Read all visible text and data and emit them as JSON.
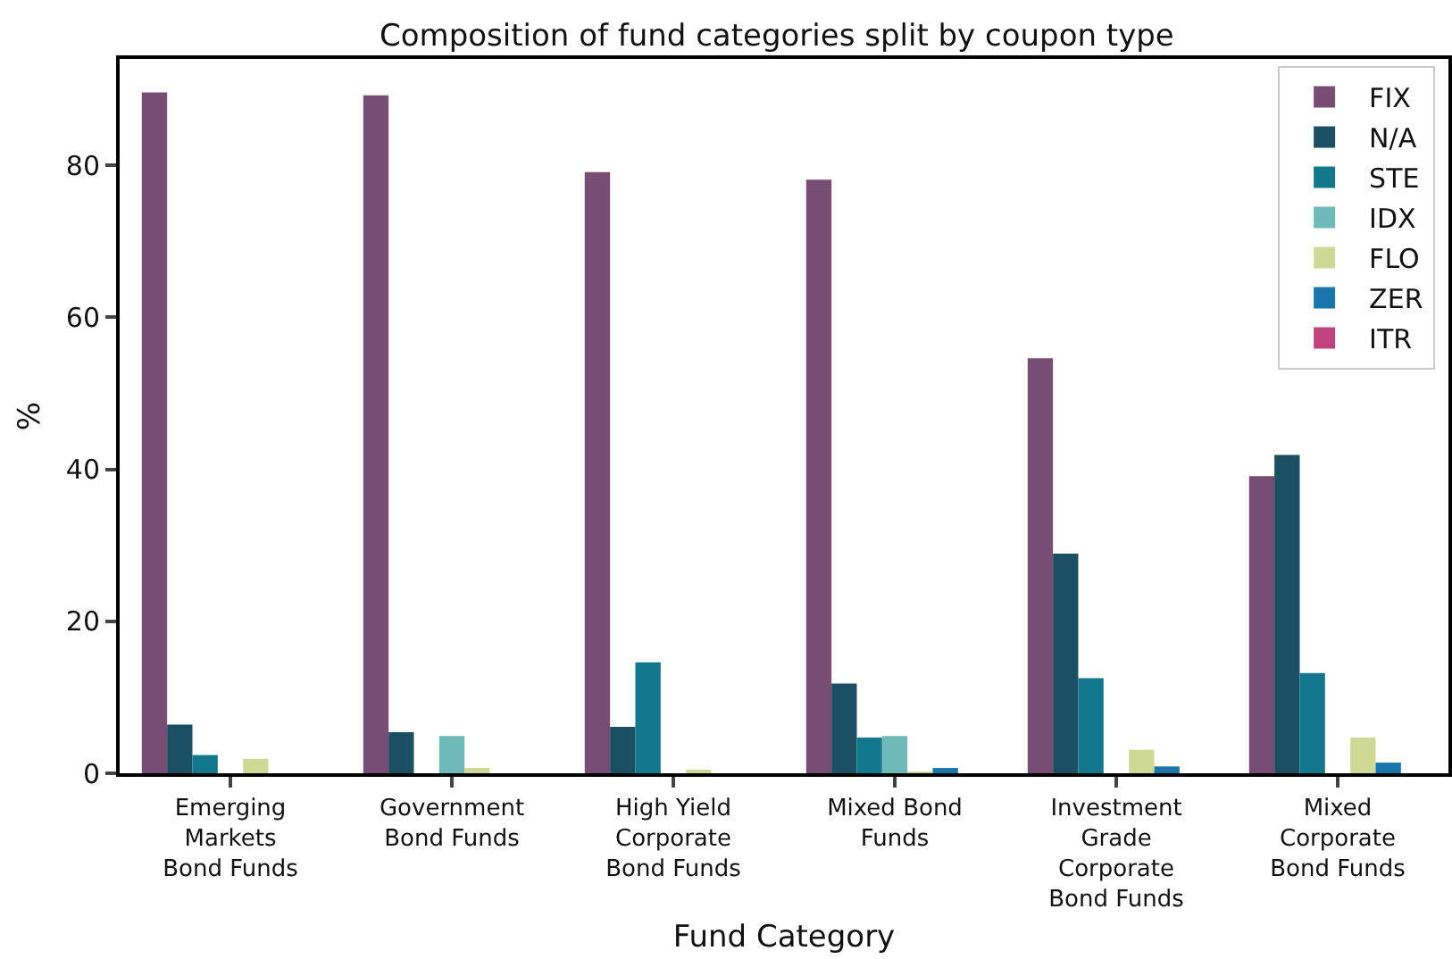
{
  "chart_data": {
    "type": "bar",
    "title": "Composition of fund categories split by coupon type",
    "xlabel": "Fund Category",
    "ylabel": "%",
    "categories": [
      "Emerging\nMarkets\nBond Funds",
      "Government\nBond Funds",
      "High Yield\nCorporate\nBond Funds",
      "Mixed Bond\nFunds",
      "Investment\nGrade\nCorporate\nBond Funds",
      "Mixed\nCorporate\nBond Funds"
    ],
    "series": [
      {
        "name": "FIX",
        "color": "#774d74",
        "values": [
          89.6,
          89.2,
          79.1,
          78.1,
          54.6,
          39.1
        ]
      },
      {
        "name": "N/A",
        "color": "#1b4f63",
        "values": [
          6.4,
          5.4,
          6.1,
          11.8,
          28.9,
          41.9
        ]
      },
      {
        "name": "STE",
        "color": "#14788c",
        "values": [
          2.4,
          0,
          14.6,
          4.7,
          12.5,
          13.2
        ]
      },
      {
        "name": "IDX",
        "color": "#6dbab8",
        "values": [
          0,
          4.9,
          0,
          4.9,
          0,
          0
        ]
      },
      {
        "name": "FLO",
        "color": "#cfd996",
        "values": [
          1.9,
          0.7,
          0.3,
          0.1,
          3.1,
          4.7
        ]
      },
      {
        "name": "ZER",
        "color": "#1a75ab",
        "values": [
          0,
          0,
          0,
          0.7,
          0.9,
          1.4
        ]
      },
      {
        "name": "ITR",
        "color": "#c0437f",
        "values": [
          0,
          0,
          0,
          0,
          0,
          0
        ]
      }
    ],
    "ylim": [
      0,
      94
    ],
    "yticks": [
      0,
      20,
      40,
      60,
      80
    ],
    "grid": false,
    "legend": "top right"
  }
}
